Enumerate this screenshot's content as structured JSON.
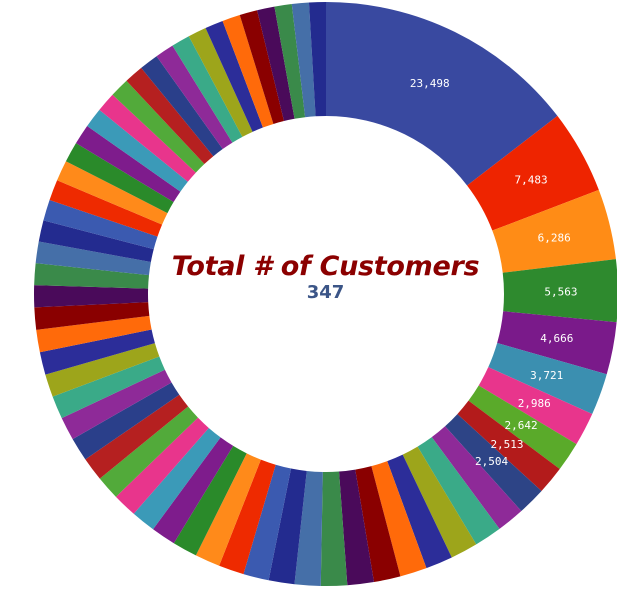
{
  "chart_data": {
    "type": "pie",
    "variant": "donut",
    "center_label": "Total # of Customers",
    "center_value": "347",
    "legend": "none",
    "slices": [
      {
        "value": 23498,
        "label": "23,498",
        "color": "#3949a0"
      },
      {
        "value": 7483,
        "label": "7,483",
        "color": "#ee2400"
      },
      {
        "value": 6286,
        "label": "6,286",
        "color": "#ff8c16"
      },
      {
        "value": 5563,
        "label": "5,563",
        "color": "#2e8a2e"
      },
      {
        "value": 4666,
        "label": "4,666",
        "color": "#7a1a8a"
      },
      {
        "value": 3721,
        "label": "3,721",
        "color": "#3b8fb0"
      },
      {
        "value": 2986,
        "label": "2,986",
        "color": "#e8358c"
      },
      {
        "value": 2642,
        "label": "2,642",
        "color": "#5aaa2a"
      },
      {
        "value": 2513,
        "label": "2,513",
        "color": "#b31b1b"
      },
      {
        "value": 2504,
        "label": "2,504",
        "color": "#2d4486"
      },
      {
        "value": 2480,
        "label": "",
        "color": "#8e2a98"
      },
      {
        "value": 2460,
        "label": "",
        "color": "#3aaa88"
      },
      {
        "value": 2440,
        "label": "",
        "color": "#9da51b"
      },
      {
        "value": 2420,
        "label": "",
        "color": "#2c2d99"
      },
      {
        "value": 2400,
        "label": "",
        "color": "#ff6a0a"
      },
      {
        "value": 2380,
        "label": "",
        "color": "#8a0000"
      },
      {
        "value": 2360,
        "label": "",
        "color": "#4a0a5a"
      },
      {
        "value": 2340,
        "label": "",
        "color": "#3a8a4a"
      },
      {
        "value": 2320,
        "label": "",
        "color": "#456fa8"
      },
      {
        "value": 2300,
        "label": "",
        "color": "#232b8f"
      },
      {
        "value": 2280,
        "label": "",
        "color": "#3b5ab0"
      },
      {
        "value": 2260,
        "label": "",
        "color": "#ee2a00"
      },
      {
        "value": 2240,
        "label": "",
        "color": "#ff8a1a"
      },
      {
        "value": 2220,
        "label": "",
        "color": "#2a8a2a"
      },
      {
        "value": 2200,
        "label": "",
        "color": "#7e1c8c"
      },
      {
        "value": 2180,
        "label": "",
        "color": "#3b9ab8"
      },
      {
        "value": 2160,
        "label": "",
        "color": "#e8358c"
      },
      {
        "value": 2140,
        "label": "",
        "color": "#52aa3a"
      },
      {
        "value": 2120,
        "label": "",
        "color": "#b52020"
      },
      {
        "value": 2100,
        "label": "",
        "color": "#2a3f8a"
      },
      {
        "value": 2080,
        "label": "",
        "color": "#8e2a98"
      },
      {
        "value": 2060,
        "label": "",
        "color": "#3aaa88"
      },
      {
        "value": 2040,
        "label": "",
        "color": "#9da51b"
      },
      {
        "value": 2020,
        "label": "",
        "color": "#2c2d99"
      },
      {
        "value": 2000,
        "label": "",
        "color": "#ff6a0a"
      },
      {
        "value": 1980,
        "label": "",
        "color": "#8a0000"
      },
      {
        "value": 1960,
        "label": "",
        "color": "#4a0a5a"
      },
      {
        "value": 1940,
        "label": "",
        "color": "#3a8a4a"
      },
      {
        "value": 1920,
        "label": "",
        "color": "#456fa8"
      },
      {
        "value": 1900,
        "label": "",
        "color": "#232b8f"
      },
      {
        "value": 1880,
        "label": "",
        "color": "#3b5ab0"
      },
      {
        "value": 1860,
        "label": "",
        "color": "#ee2a00"
      },
      {
        "value": 1840,
        "label": "",
        "color": "#ff8a1a"
      },
      {
        "value": 1820,
        "label": "",
        "color": "#2a8a2a"
      },
      {
        "value": 1800,
        "label": "",
        "color": "#7e1c8c"
      },
      {
        "value": 1780,
        "label": "",
        "color": "#3b9ab8"
      },
      {
        "value": 1760,
        "label": "",
        "color": "#e8358c"
      },
      {
        "value": 1740,
        "label": "",
        "color": "#52aa3a"
      },
      {
        "value": 1720,
        "label": "",
        "color": "#b52020"
      },
      {
        "value": 1700,
        "label": "",
        "color": "#2a3f8a"
      },
      {
        "value": 1680,
        "label": "",
        "color": "#8e2a98"
      },
      {
        "value": 1660,
        "label": "",
        "color": "#3aaa88"
      },
      {
        "value": 1640,
        "label": "",
        "color": "#9da51b"
      },
      {
        "value": 1620,
        "label": "",
        "color": "#2c2d99"
      },
      {
        "value": 1600,
        "label": "",
        "color": "#ff6a0a"
      },
      {
        "value": 1580,
        "label": "",
        "color": "#8a0000"
      },
      {
        "value": 1560,
        "label": "",
        "color": "#4a0a5a"
      },
      {
        "value": 1540,
        "label": "",
        "color": "#3a8a4a"
      },
      {
        "value": 1520,
        "label": "",
        "color": "#456fa8"
      },
      {
        "value": 1500,
        "label": "",
        "color": "#232b8f"
      }
    ]
  }
}
